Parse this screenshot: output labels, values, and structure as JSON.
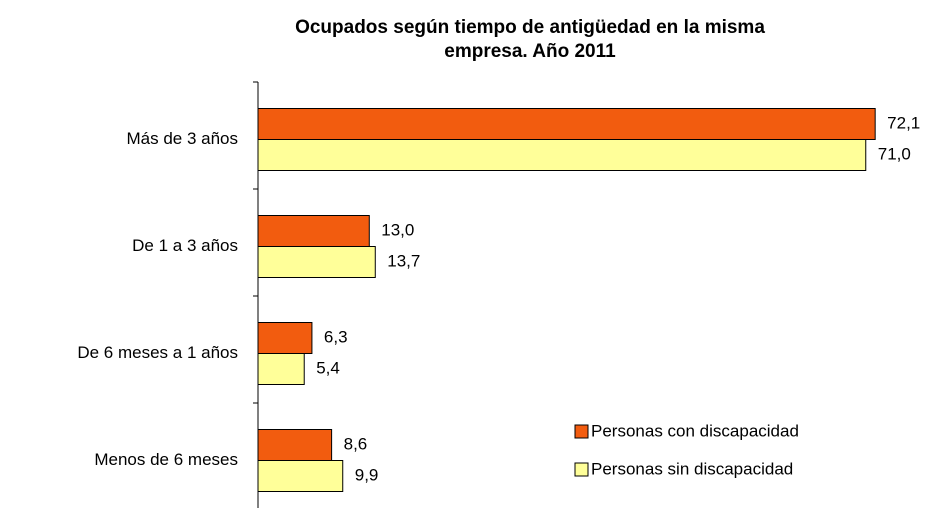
{
  "chart_data": {
    "type": "hbar",
    "title": [
      "Ocupados según tiempo de antigüedad en la misma",
      "empresa. Año 2011"
    ],
    "categories": [
      "Más de 3 años",
      "De 1 a 3 años",
      "De 6 meses a 1 años",
      "Menos de 6 meses"
    ],
    "series": [
      {
        "name": "Personas con discapacidad",
        "color": "#f25c0f",
        "values": [
          72.1,
          13.0,
          6.3,
          8.6
        ],
        "value_labels": [
          "72,1",
          "13,0",
          "6,3",
          "8,6"
        ]
      },
      {
        "name": "Personas sin discapacidad",
        "color": "#ffff99",
        "values": [
          71.0,
          13.7,
          5.4,
          9.9
        ],
        "value_labels": [
          "71,0",
          "13,7",
          "5,4",
          "9,9"
        ]
      }
    ],
    "xlim": [
      0,
      75
    ],
    "legend": "lower right"
  }
}
